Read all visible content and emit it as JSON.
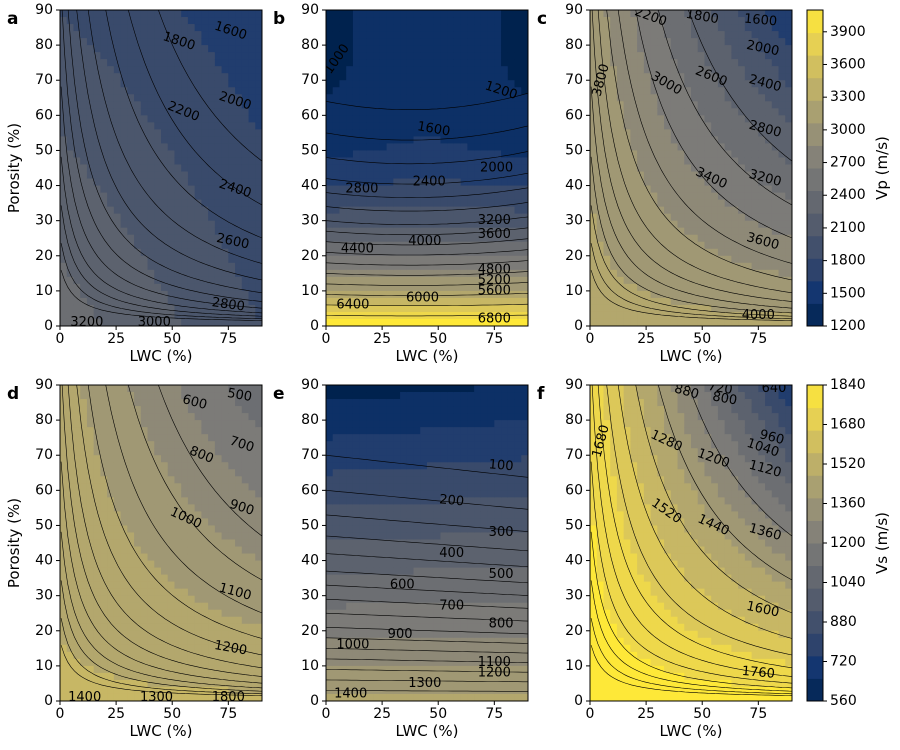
{
  "colors": {
    "cividis_low": "#00224e",
    "cividis_mid": "#7c7b78",
    "cividis_high": "#fee838",
    "contour_line": "#000000"
  },
  "chart_data": [
    {
      "id": "a",
      "panel_label": "a",
      "type": "contour",
      "xlabel": "LWC (%)",
      "ylabel": "Porosity (%)",
      "xlim": [
        0,
        90
      ],
      "ylim": [
        0,
        90
      ],
      "xticks": [
        "0",
        "25",
        "50",
        "75"
      ],
      "yticks": [
        "0",
        "10",
        "20",
        "30",
        "40",
        "50",
        "60",
        "70",
        "80",
        "90"
      ],
      "colorbar": "vp",
      "contour_labels": [
        {
          "text": "1600",
          "x": 76,
          "y": 84,
          "rot": 18
        },
        {
          "text": "1800",
          "x": 53,
          "y": 81,
          "rot": 18
        },
        {
          "text": "2000",
          "x": 78,
          "y": 64,
          "rot": 18
        },
        {
          "text": "2200",
          "x": 55,
          "y": 61,
          "rot": 22
        },
        {
          "text": "2400",
          "x": 78,
          "y": 39,
          "rot": 18
        },
        {
          "text": "2600",
          "x": 77,
          "y": 24,
          "rot": 12
        },
        {
          "text": "2800",
          "x": 75,
          "y": 6,
          "rot": 8
        },
        {
          "text": "3200",
          "x": 12,
          "y": 1,
          "rot": 0
        },
        {
          "text": "3000",
          "x": 42,
          "y": 1,
          "rot": 0
        }
      ]
    },
    {
      "id": "b",
      "panel_label": "b",
      "type": "contour",
      "xlabel": "LWC (%)",
      "ylabel": "",
      "xlim": [
        0,
        90
      ],
      "ylim": [
        0,
        90
      ],
      "xticks": [
        "0",
        "25",
        "50",
        "75"
      ],
      "yticks": [
        "0",
        "10",
        "20",
        "30",
        "40",
        "50",
        "60",
        "70",
        "80",
        "90"
      ],
      "colorbar": "vp",
      "contour_labels": [
        {
          "text": "1000",
          "x": 5,
          "y": 76,
          "rot": -55
        },
        {
          "text": "1200",
          "x": 78,
          "y": 67,
          "rot": 18
        },
        {
          "text": "1600",
          "x": 48,
          "y": 56,
          "rot": 10
        },
        {
          "text": "2000",
          "x": 76,
          "y": 45,
          "rot": 0
        },
        {
          "text": "2800",
          "x": 16,
          "y": 39,
          "rot": 0
        },
        {
          "text": "2400",
          "x": 46,
          "y": 41,
          "rot": 0
        },
        {
          "text": "3200",
          "x": 75,
          "y": 30,
          "rot": 0
        },
        {
          "text": "3600",
          "x": 75,
          "y": 26,
          "rot": 0
        },
        {
          "text": "4000",
          "x": 44,
          "y": 24,
          "rot": 0
        },
        {
          "text": "4400",
          "x": 14,
          "y": 22,
          "rot": 0
        },
        {
          "text": "4800",
          "x": 75,
          "y": 16,
          "rot": 0
        },
        {
          "text": "5200",
          "x": 75,
          "y": 13,
          "rot": 0
        },
        {
          "text": "5600",
          "x": 75,
          "y": 10,
          "rot": 0
        },
        {
          "text": "6000",
          "x": 43,
          "y": 8,
          "rot": 0
        },
        {
          "text": "6400",
          "x": 12,
          "y": 6,
          "rot": 0
        },
        {
          "text": "6800",
          "x": 75,
          "y": 2,
          "rot": 0
        }
      ]
    },
    {
      "id": "c",
      "panel_label": "c",
      "type": "contour",
      "xlabel": "LWC (%)",
      "ylabel": "",
      "xlim": [
        0,
        90
      ],
      "ylim": [
        0,
        90
      ],
      "xticks": [
        "0",
        "25",
        "50",
        "75"
      ],
      "yticks": [
        "0",
        "10",
        "20",
        "30",
        "40",
        "50",
        "60",
        "70",
        "80",
        "90"
      ],
      "colorbar": "vp",
      "contour_labels": [
        {
          "text": "1600",
          "x": 76,
          "y": 87,
          "rot": 5
        },
        {
          "text": "1800",
          "x": 50,
          "y": 88,
          "rot": 10
        },
        {
          "text": "2200",
          "x": 27,
          "y": 88,
          "rot": 20
        },
        {
          "text": "2000",
          "x": 77,
          "y": 79,
          "rot": 12
        },
        {
          "text": "2400",
          "x": 78,
          "y": 69,
          "rot": 15
        },
        {
          "text": "2600",
          "x": 54,
          "y": 71,
          "rot": 22
        },
        {
          "text": "3000",
          "x": 34,
          "y": 69,
          "rot": 30
        },
        {
          "text": "3800",
          "x": 5,
          "y": 70,
          "rot": -75
        },
        {
          "text": "2800",
          "x": 78,
          "y": 56,
          "rot": 15
        },
        {
          "text": "3200",
          "x": 78,
          "y": 42,
          "rot": 15
        },
        {
          "text": "3400",
          "x": 54,
          "y": 42,
          "rot": 25
        },
        {
          "text": "3600",
          "x": 77,
          "y": 24,
          "rot": 15
        },
        {
          "text": "4000",
          "x": 75,
          "y": 3,
          "rot": 0
        }
      ]
    },
    {
      "id": "d",
      "panel_label": "d",
      "type": "contour",
      "xlabel": "LWC (%)",
      "ylabel": "Porosity (%)",
      "xlim": [
        0,
        90
      ],
      "ylim": [
        0,
        90
      ],
      "xticks": [
        "0",
        "25",
        "50",
        "75"
      ],
      "yticks": [
        "0",
        "10",
        "20",
        "30",
        "40",
        "50",
        "60",
        "70",
        "80",
        "90"
      ],
      "colorbar": "vs",
      "contour_labels": [
        {
          "text": "500",
          "x": 80,
          "y": 87,
          "rot": 10
        },
        {
          "text": "600",
          "x": 60,
          "y": 85,
          "rot": 15
        },
        {
          "text": "700",
          "x": 81,
          "y": 73,
          "rot": 18
        },
        {
          "text": "800",
          "x": 63,
          "y": 70,
          "rot": 22
        },
        {
          "text": "900",
          "x": 81,
          "y": 55,
          "rot": 18
        },
        {
          "text": "1000",
          "x": 56,
          "y": 52,
          "rot": 25
        },
        {
          "text": "1100",
          "x": 78,
          "y": 31,
          "rot": 15
        },
        {
          "text": "1200",
          "x": 76,
          "y": 15,
          "rot": 10
        },
        {
          "text": "1400",
          "x": 11,
          "y": 1,
          "rot": 0
        },
        {
          "text": "1300",
          "x": 43,
          "y": 1,
          "rot": 0
        },
        {
          "text": "1800",
          "x": 75,
          "y": 1,
          "rot": 0
        }
      ]
    },
    {
      "id": "e",
      "panel_label": "e",
      "type": "contour",
      "xlabel": "LWC (%)",
      "ylabel": "",
      "xlim": [
        0,
        90
      ],
      "ylim": [
        0,
        90
      ],
      "xticks": [
        "0",
        "25",
        "50",
        "75"
      ],
      "yticks": [
        "0",
        "10",
        "20",
        "30",
        "40",
        "50",
        "60",
        "70",
        "80",
        "90"
      ],
      "colorbar": "vs",
      "contour_labels": [
        {
          "text": "100",
          "x": 78,
          "y": 67,
          "rot": 5
        },
        {
          "text": "200",
          "x": 56,
          "y": 57,
          "rot": 5
        },
        {
          "text": "300",
          "x": 78,
          "y": 48,
          "rot": 0
        },
        {
          "text": "400",
          "x": 56,
          "y": 42,
          "rot": 0
        },
        {
          "text": "500",
          "x": 78,
          "y": 36,
          "rot": 0
        },
        {
          "text": "600",
          "x": 34,
          "y": 33,
          "rot": 0
        },
        {
          "text": "700",
          "x": 56,
          "y": 27,
          "rot": 0
        },
        {
          "text": "800",
          "x": 78,
          "y": 22,
          "rot": 0
        },
        {
          "text": "900",
          "x": 33,
          "y": 19,
          "rot": 0
        },
        {
          "text": "1000",
          "x": 12,
          "y": 16,
          "rot": 0
        },
        {
          "text": "1100",
          "x": 75,
          "y": 11,
          "rot": 0
        },
        {
          "text": "1200",
          "x": 75,
          "y": 8,
          "rot": 0
        },
        {
          "text": "1300",
          "x": 44,
          "y": 5,
          "rot": 0
        },
        {
          "text": "1400",
          "x": 11,
          "y": 2,
          "rot": 0
        }
      ]
    },
    {
      "id": "f",
      "panel_label": "f",
      "type": "contour",
      "xlabel": "LWC (%)",
      "ylabel": "",
      "xlim": [
        0,
        90
      ],
      "ylim": [
        0,
        90
      ],
      "xticks": [
        "0",
        "25",
        "50",
        "75"
      ],
      "yticks": [
        "0",
        "10",
        "20",
        "30",
        "40",
        "50",
        "60",
        "70",
        "80",
        "90"
      ],
      "colorbar": "vs",
      "contour_labels": [
        {
          "text": "640",
          "x": 82,
          "y": 89,
          "rot": 0
        },
        {
          "text": "720",
          "x": 58,
          "y": 89,
          "rot": 10
        },
        {
          "text": "880",
          "x": 43,
          "y": 88,
          "rot": 15
        },
        {
          "text": "800",
          "x": 60,
          "y": 86,
          "rot": 10
        },
        {
          "text": "960",
          "x": 81,
          "y": 75,
          "rot": 15
        },
        {
          "text": "1040",
          "x": 77,
          "y": 72,
          "rot": 18
        },
        {
          "text": "1120",
          "x": 78,
          "y": 66,
          "rot": 15
        },
        {
          "text": "1200",
          "x": 55,
          "y": 69,
          "rot": 20
        },
        {
          "text": "1280",
          "x": 34,
          "y": 74,
          "rot": 25
        },
        {
          "text": "1680",
          "x": 5,
          "y": 74,
          "rot": -75
        },
        {
          "text": "1360",
          "x": 78,
          "y": 48,
          "rot": 15
        },
        {
          "text": "1440",
          "x": 55,
          "y": 50,
          "rot": 25
        },
        {
          "text": "1520",
          "x": 34,
          "y": 54,
          "rot": 35
        },
        {
          "text": "1600",
          "x": 77,
          "y": 26,
          "rot": 12
        },
        {
          "text": "1760",
          "x": 75,
          "y": 8,
          "rot": 5
        }
      ]
    }
  ],
  "colorbars": {
    "vp": {
      "label": "Vp (m/s)",
      "range": [
        1200,
        4100
      ],
      "ticks": [
        "1200",
        "1500",
        "1800",
        "2100",
        "2400",
        "2700",
        "3000",
        "3300",
        "3600",
        "3900"
      ]
    },
    "vs": {
      "label": "Vs (m/s)",
      "range": [
        560,
        1840
      ],
      "ticks": [
        "560",
        "720",
        "880",
        "1040",
        "1200",
        "1360",
        "1520",
        "1680",
        "1840"
      ]
    }
  }
}
